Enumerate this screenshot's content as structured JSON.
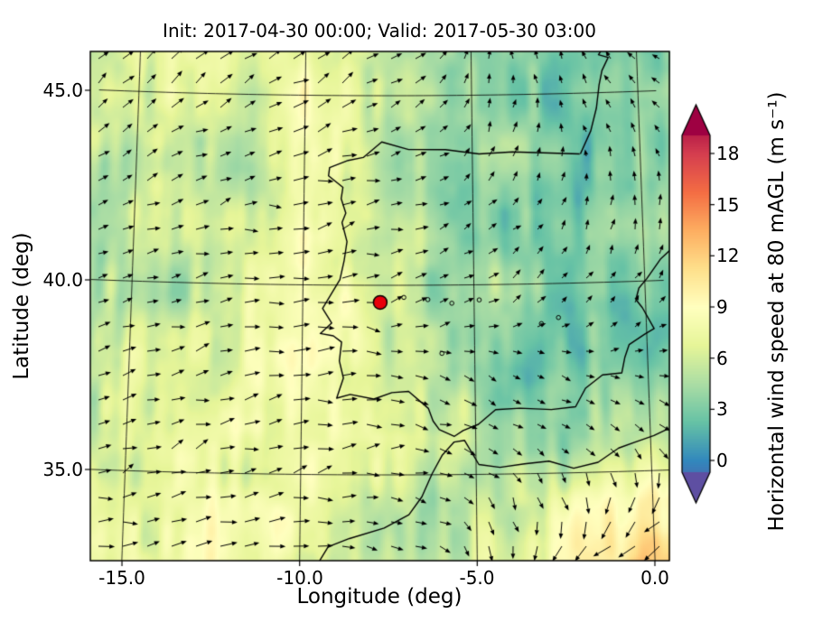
{
  "figure": {
    "kind": "model forecast map"
  },
  "chart_data": {
    "type": "heatmap",
    "variant": "geographic wind-speed field with quiver arrows, graticule and colorbar",
    "title": "Init: 2017-04-30 00:00; Valid: 2017-05-30 03:00",
    "xlabel": "Longitude (deg)",
    "ylabel": "Latitude (deg)",
    "xlim": [
      -15.9,
      0.4
    ],
    "ylim": [
      32.7,
      46.2
    ],
    "grid": true,
    "x_ticks": [
      {
        "value": -15,
        "label": "-15.0"
      },
      {
        "value": -10,
        "label": "-10.0"
      },
      {
        "value": -5,
        "label": "-5.0"
      },
      {
        "value": 0,
        "label": "0.0"
      }
    ],
    "y_ticks": [
      {
        "value": 45,
        "label": "45.0"
      },
      {
        "value": 40,
        "label": "40.0"
      },
      {
        "value": 35,
        "label": "35.0"
      }
    ],
    "colorbar": {
      "label": "Horizontal wind speed at 80 mAGL (m s⁻¹)",
      "ticks": [
        {
          "value": 0,
          "label": "0"
        },
        {
          "value": 3,
          "label": "3"
        },
        {
          "value": 6,
          "label": "6"
        },
        {
          "value": 9,
          "label": "9"
        },
        {
          "value": 12,
          "label": "12"
        },
        {
          "value": 15,
          "label": "15"
        },
        {
          "value": 18,
          "label": "18"
        }
      ],
      "range": [
        0,
        18
      ],
      "extend": "both",
      "colormap": "Spectral_r",
      "stops": [
        "#5e4fa2",
        "#3288bd",
        "#66c2a5",
        "#abdda4",
        "#e6f598",
        "#ffffbf",
        "#fee08b",
        "#fdae61",
        "#f46d43",
        "#d53e4f",
        "#9e0142"
      ]
    },
    "marker": {
      "name": "site-marker",
      "lon": -7.74,
      "lat": 39.55,
      "color": "#e8000b",
      "edge": "#000000"
    },
    "wind_field": {
      "units": "m s-1",
      "lon_samples": [
        -16,
        -14,
        -12,
        -10,
        -8,
        -6,
        -4,
        -2,
        0
      ],
      "lat_samples": [
        46.5,
        44.75,
        43.0,
        41.25,
        39.5,
        37.75,
        36.0,
        34.25,
        32.5
      ],
      "speed_grid": [
        [
          6,
          7,
          7,
          8,
          5,
          4,
          4,
          3,
          3
        ],
        [
          6,
          7,
          6,
          8,
          5,
          4,
          3,
          2,
          3
        ],
        [
          5,
          6,
          5,
          8,
          6,
          4,
          4,
          3,
          4
        ],
        [
          5,
          6,
          6,
          9,
          5,
          4,
          4,
          3,
          4
        ],
        [
          5,
          5,
          6,
          9,
          7,
          4,
          4,
          3,
          3
        ],
        [
          6,
          6,
          7,
          9,
          7,
          4,
          3,
          3,
          4
        ],
        [
          6,
          7,
          7,
          8,
          8,
          6,
          4,
          4,
          5
        ],
        [
          7,
          7,
          8,
          8,
          6,
          5,
          6,
          8,
          10
        ],
        [
          7,
          8,
          8,
          7,
          5,
          5,
          7,
          10,
          12
        ]
      ],
      "direction_deg_grid": [
        [
          50,
          45,
          40,
          35,
          30,
          60,
          90,
          120,
          140
        ],
        [
          45,
          40,
          35,
          30,
          25,
          40,
          80,
          110,
          130
        ],
        [
          30,
          25,
          20,
          20,
          15,
          30,
          60,
          90,
          110
        ],
        [
          20,
          15,
          10,
          10,
          15,
          20,
          40,
          60,
          80
        ],
        [
          15,
          10,
          5,
          0,
          10,
          30,
          30,
          40,
          50
        ],
        [
          20,
          15,
          10,
          5,
          -10,
          -20,
          -30,
          -20,
          0
        ],
        [
          25,
          20,
          15,
          10,
          0,
          -10,
          -30,
          -40,
          -30
        ],
        [
          15,
          12,
          10,
          8,
          0,
          -20,
          -60,
          -90,
          -120
        ],
        [
          10,
          10,
          8,
          5,
          0,
          -30,
          -90,
          -150,
          -170
        ]
      ]
    },
    "map": {
      "coastlines": {
        "iberia": [
          [
            -1.8,
            43.4
          ],
          [
            -2.9,
            43.45
          ],
          [
            -3.8,
            43.49
          ],
          [
            -4.8,
            43.45
          ],
          [
            -5.8,
            43.57
          ],
          [
            -6.9,
            43.58
          ],
          [
            -7.7,
            43.78
          ],
          [
            -8.25,
            43.37
          ],
          [
            -8.7,
            43.29
          ],
          [
            -9.25,
            43.1
          ],
          [
            -9.28,
            42.88
          ],
          [
            -8.85,
            42.58
          ],
          [
            -8.9,
            42.28
          ],
          [
            -8.76,
            41.9
          ],
          [
            -8.87,
            41.65
          ],
          [
            -8.72,
            41.15
          ],
          [
            -8.8,
            40.65
          ],
          [
            -8.92,
            40.15
          ],
          [
            -9.42,
            39.38
          ],
          [
            -9.15,
            39.0
          ],
          [
            -9.48,
            38.72
          ],
          [
            -9.1,
            38.66
          ],
          [
            -8.86,
            38.5
          ],
          [
            -8.92,
            38.0
          ],
          [
            -8.8,
            37.55
          ],
          [
            -8.99,
            37.02
          ],
          [
            -8.6,
            37.12
          ],
          [
            -7.92,
            37.0
          ],
          [
            -7.4,
            37.17
          ],
          [
            -6.92,
            37.2
          ],
          [
            -6.35,
            36.75
          ],
          [
            -6.22,
            36.42
          ],
          [
            -6.04,
            36.19
          ],
          [
            -5.61,
            36.01
          ],
          [
            -5.36,
            36.16
          ],
          [
            -4.92,
            36.32
          ],
          [
            -4.42,
            36.7
          ],
          [
            -3.72,
            36.73
          ],
          [
            -2.82,
            36.68
          ],
          [
            -2.12,
            36.74
          ],
          [
            -1.82,
            37.22
          ],
          [
            -1.32,
            37.56
          ],
          [
            -0.76,
            37.6
          ],
          [
            -0.66,
            38.0
          ],
          [
            -0.52,
            38.34
          ],
          [
            -0.06,
            38.6
          ],
          [
            0.22,
            38.74
          ],
          [
            -0.1,
            39.3
          ],
          [
            -0.28,
            39.52
          ],
          [
            -0.18,
            39.82
          ],
          [
            0.06,
            40.06
          ],
          [
            0.48,
            40.56
          ],
          [
            0.85,
            40.85
          ]
        ],
        "france": [
          [
            -1.78,
            43.4
          ],
          [
            -1.45,
            44.0
          ],
          [
            -1.26,
            44.6
          ],
          [
            -1.16,
            45.2
          ],
          [
            -1.06,
            45.58
          ],
          [
            -0.86,
            45.92
          ],
          [
            -1.15,
            46.0
          ],
          [
            -0.95,
            46.25
          ]
        ],
        "africa": [
          [
            -9.55,
            32.55
          ],
          [
            -9.2,
            33.1
          ],
          [
            -8.6,
            33.32
          ],
          [
            -7.62,
            33.6
          ],
          [
            -6.92,
            33.95
          ],
          [
            -6.55,
            34.42
          ],
          [
            -6.26,
            35.02
          ],
          [
            -5.96,
            35.52
          ],
          [
            -5.62,
            35.86
          ],
          [
            -5.32,
            35.9
          ],
          [
            -4.92,
            35.26
          ],
          [
            -4.32,
            35.18
          ],
          [
            -3.62,
            35.26
          ],
          [
            -2.92,
            35.32
          ],
          [
            -2.22,
            35.12
          ],
          [
            -1.52,
            35.26
          ],
          [
            -0.92,
            35.62
          ],
          [
            -0.46,
            35.76
          ],
          [
            0.1,
            35.92
          ],
          [
            0.5,
            36.08
          ]
        ]
      },
      "lakes": [
        [
          -6.35,
          39.62
        ],
        [
          -5.65,
          39.52
        ],
        [
          -4.85,
          39.6
        ],
        [
          -5.95,
          38.2
        ],
        [
          -3.05,
          38.95
        ],
        [
          -7.05,
          39.68
        ],
        [
          -2.55,
          39.1
        ]
      ]
    }
  }
}
